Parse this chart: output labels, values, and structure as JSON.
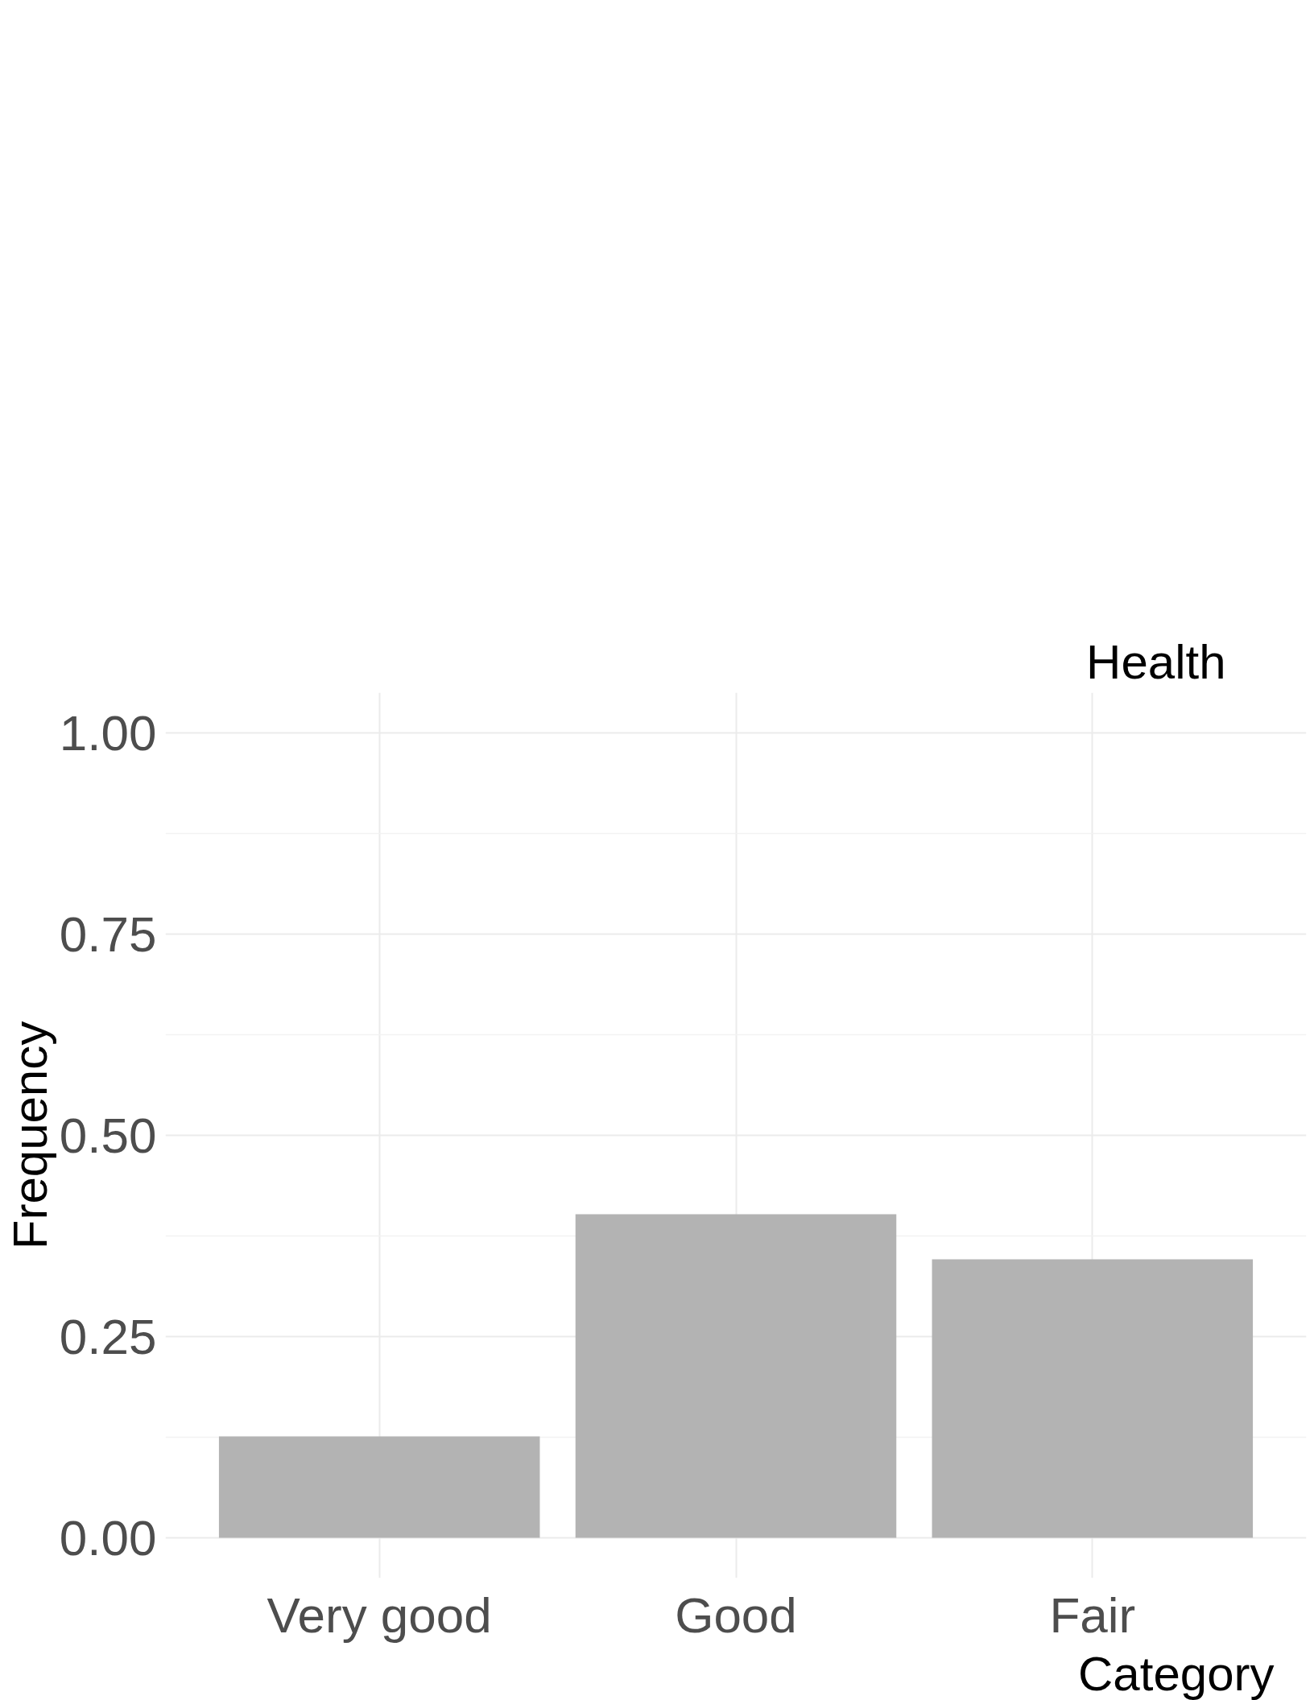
{
  "chart_data": {
    "type": "bar",
    "title": "Health",
    "xlabel": "Category",
    "ylabel": "Frequency",
    "categories": [
      "Very good",
      "Good",
      "Fair"
    ],
    "values": [
      0.126,
      0.402,
      0.346
    ],
    "color": "#b3b3b3",
    "ylim": [
      -0.05,
      1.05
    ],
    "yticks": [
      {
        "value": 0,
        "label": "0.00"
      },
      {
        "value": 0.25,
        "label": "0.25"
      },
      {
        "value": 0.5,
        "label": "0.50"
      },
      {
        "value": 0.75,
        "label": "0.75"
      },
      {
        "value": 1,
        "label": "1.00"
      }
    ],
    "grid": true
  }
}
